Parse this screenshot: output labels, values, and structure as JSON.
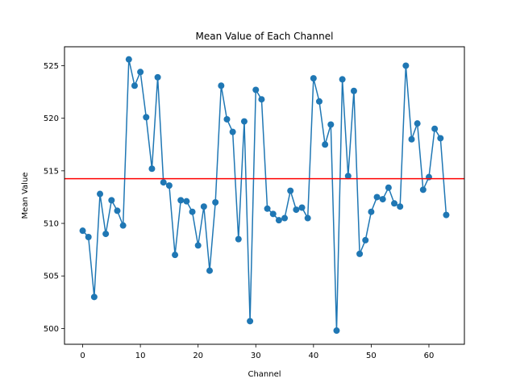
{
  "chart_data": {
    "type": "line",
    "title": "Mean Value of Each Channel",
    "xlabel": "Channel",
    "ylabel": "Mean Value",
    "xlim": [
      -3.15,
      66.15
    ],
    "ylim": [
      498.5,
      526.8
    ],
    "x_ticks": [
      0,
      10,
      20,
      30,
      40,
      50,
      60
    ],
    "y_ticks": [
      500,
      505,
      510,
      515,
      520,
      525
    ],
    "grid": false,
    "markers": true,
    "series": [
      {
        "color": "#1f77b4",
        "x": [
          0,
          1,
          2,
          3,
          4,
          5,
          6,
          7,
          8,
          9,
          10,
          11,
          12,
          13,
          14,
          15,
          16,
          17,
          18,
          19,
          20,
          21,
          22,
          23,
          24,
          25,
          26,
          27,
          28,
          29,
          30,
          31,
          32,
          33,
          34,
          35,
          36,
          37,
          38,
          39,
          40,
          41,
          42,
          43,
          44,
          45,
          46,
          47,
          48,
          49,
          50,
          51,
          52,
          53,
          54,
          55,
          56,
          57,
          58,
          59,
          60,
          61,
          62,
          63
        ],
        "values": [
          509.3,
          508.7,
          503.0,
          512.8,
          509.0,
          512.2,
          511.2,
          509.8,
          525.6,
          523.1,
          524.4,
          520.1,
          515.2,
          523.9,
          513.9,
          513.6,
          507.0,
          512.2,
          512.1,
          511.1,
          507.9,
          511.6,
          505.5,
          512.0,
          523.1,
          519.9,
          518.7,
          508.5,
          519.7,
          500.7,
          522.7,
          521.8,
          511.4,
          510.9,
          510.3,
          510.5,
          513.1,
          511.3,
          511.5,
          510.5,
          523.8,
          521.6,
          517.5,
          519.4,
          499.8,
          523.7,
          514.5,
          522.6,
          507.1,
          508.4,
          511.1,
          512.5,
          512.3,
          513.4,
          511.9,
          511.6,
          525.0,
          518.0,
          519.5,
          513.2,
          514.4,
          519.0,
          518.1,
          510.8
        ]
      }
    ],
    "hlines": [
      {
        "y": 514.25,
        "color": "#ff0000"
      }
    ]
  }
}
